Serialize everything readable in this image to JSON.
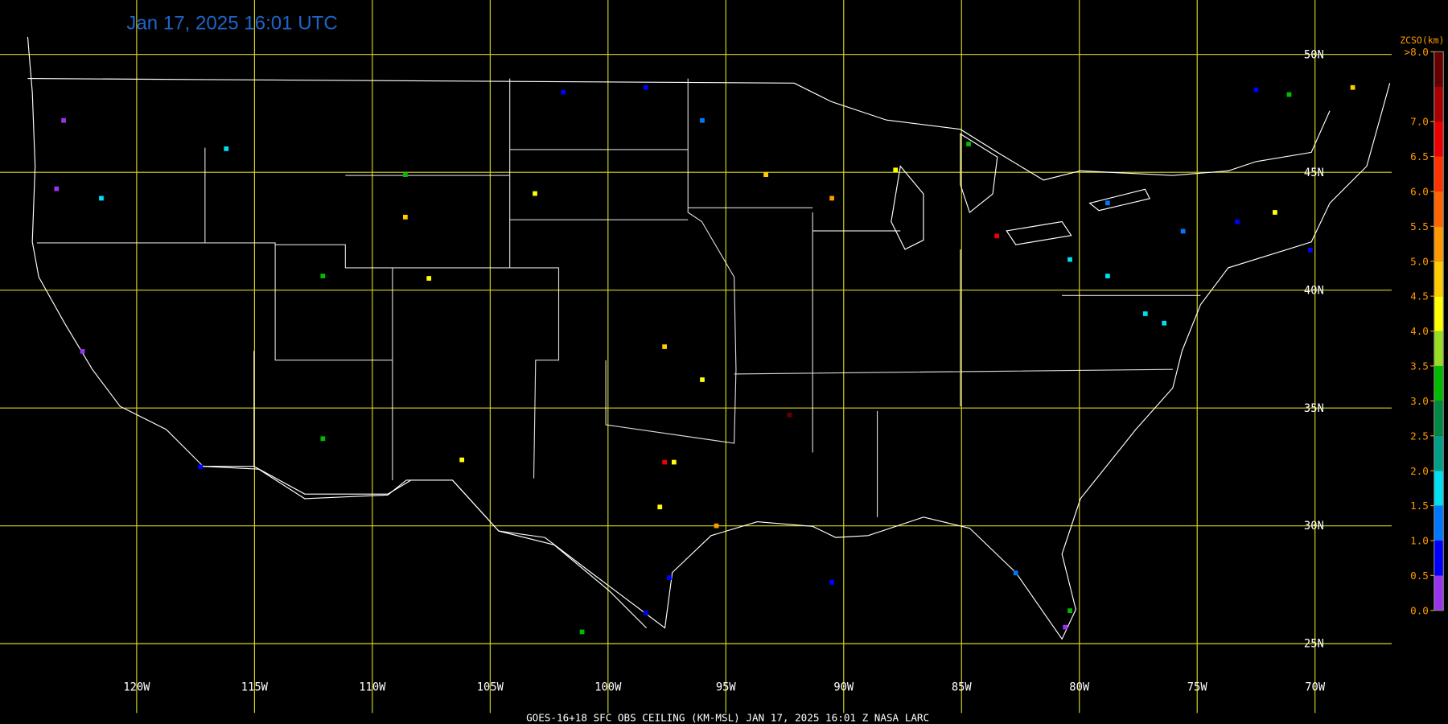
{
  "map": {
    "title": "Jan 17, 2025 16:01 UTC",
    "footer": "GOES-16+18  SFC OBS CEILING (KM-MSL)  JAN 17, 2025 16:01 Z  NASA LARC",
    "meridians": [
      {
        "value": -120,
        "label": "120W"
      },
      {
        "value": -115,
        "label": "115W"
      },
      {
        "value": -110,
        "label": "110W"
      },
      {
        "value": -105,
        "label": "105W"
      },
      {
        "value": -100,
        "label": "100W"
      },
      {
        "value": -95,
        "label": "95W"
      },
      {
        "value": -90,
        "label": "90W"
      },
      {
        "value": -85,
        "label": "85W"
      },
      {
        "value": -80,
        "label": "80W"
      },
      {
        "value": -75,
        "label": "75W"
      },
      {
        "value": -70,
        "label": "70W"
      }
    ],
    "parallels": [
      {
        "value": 50,
        "label": "50N"
      },
      {
        "value": 45,
        "label": "45N"
      },
      {
        "value": 40,
        "label": "40N"
      },
      {
        "value": 35,
        "label": "35N"
      },
      {
        "value": 30,
        "label": "30N"
      },
      {
        "value": 25,
        "label": "25N"
      }
    ],
    "colorbar": {
      "title": "ZCSO(km)",
      "range": [
        0,
        8
      ],
      "colors": [
        "#9933ee",
        "#0000ff",
        "#0077ff",
        "#00e0f0",
        "#00a088",
        "#008844",
        "#00bb00",
        "#99dd22",
        "#ffff00",
        "#ffcc00",
        "#ff9900",
        "#ff6600",
        "#ff3300",
        "#ee0000",
        "#aa0000",
        "#660000"
      ],
      "ticks": [
        {
          "value": 0,
          "label": "0.0"
        },
        {
          "value": 0.5,
          "label": "0.5"
        },
        {
          "value": 1,
          "label": "1.0"
        },
        {
          "value": 1.5,
          "label": "1.5"
        },
        {
          "value": 2,
          "label": "2.0"
        },
        {
          "value": 2.5,
          "label": "2.5"
        },
        {
          "value": 3,
          "label": "3.0"
        },
        {
          "value": 3.5,
          "label": "3.5"
        },
        {
          "value": 4,
          "label": "4.0"
        },
        {
          "value": 4.5,
          "label": "4.5"
        },
        {
          "value": 5,
          "label": "5.0"
        },
        {
          "value": 5.5,
          "label": "5.5"
        },
        {
          "value": 6,
          "label": "6.0"
        },
        {
          "value": 6.5,
          "label": "6.5"
        },
        {
          "value": 7,
          "label": "7.0"
        },
        {
          "value": 8,
          "label": ">8.0"
        }
      ]
    },
    "stations": [
      {
        "lon": -123.1,
        "lat": 47.2,
        "ceiling": 0.3
      },
      {
        "lon": -123.4,
        "lat": 44.3,
        "ceiling": 0.3
      },
      {
        "lon": -122.3,
        "lat": 37.4,
        "ceiling": 0.3
      },
      {
        "lon": -117.3,
        "lat": 32.5,
        "ceiling": 0.8
      },
      {
        "lon": -112.1,
        "lat": 40.6,
        "ceiling": 3.2
      },
      {
        "lon": -108.6,
        "lat": 44.9,
        "ceiling": 3.2
      },
      {
        "lon": -107.6,
        "lat": 40.5,
        "ceiling": 4.2
      },
      {
        "lon": -106.2,
        "lat": 32.8,
        "ceiling": 4.2
      },
      {
        "lon": -112.1,
        "lat": 33.7,
        "ceiling": 3.2
      },
      {
        "lon": -101.9,
        "lat": 48.4,
        "ceiling": 0.8
      },
      {
        "lon": -98.4,
        "lat": 48.6,
        "ceiling": 0.8
      },
      {
        "lon": -96.0,
        "lat": 47.2,
        "ceiling": 1.2
      },
      {
        "lon": -97.6,
        "lat": 37.6,
        "ceiling": 4.8
      },
      {
        "lon": -96.0,
        "lat": 36.2,
        "ceiling": 4.2
      },
      {
        "lon": -97.2,
        "lat": 32.7,
        "ceiling": 4.2
      },
      {
        "lon": -97.6,
        "lat": 32.7,
        "ceiling": 6.8
      },
      {
        "lon": -97.8,
        "lat": 30.8,
        "ceiling": 4.2
      },
      {
        "lon": -98.4,
        "lat": 26.3,
        "ceiling": 0.8
      },
      {
        "lon": -97.4,
        "lat": 27.8,
        "ceiling": 0.8
      },
      {
        "lon": -95.4,
        "lat": 30.0,
        "ceiling": 5.3
      },
      {
        "lon": -92.3,
        "lat": 34.7,
        "ceiling": 7.8
      },
      {
        "lon": -90.5,
        "lat": 43.9,
        "ceiling": 5.3
      },
      {
        "lon": -87.8,
        "lat": 45.1,
        "ceiling": 4.2
      },
      {
        "lon": -84.7,
        "lat": 46.2,
        "ceiling": 3.2
      },
      {
        "lon": -83.5,
        "lat": 42.3,
        "ceiling": 6.8
      },
      {
        "lon": -80.4,
        "lat": 41.3,
        "ceiling": 1.7
      },
      {
        "lon": -78.8,
        "lat": 40.6,
        "ceiling": 1.7
      },
      {
        "lon": -77.2,
        "lat": 39.0,
        "ceiling": 1.7
      },
      {
        "lon": -76.4,
        "lat": 38.6,
        "ceiling": 1.7
      },
      {
        "lon": -78.8,
        "lat": 43.7,
        "ceiling": 1.2
      },
      {
        "lon": -75.6,
        "lat": 42.5,
        "ceiling": 1.2
      },
      {
        "lon": -73.3,
        "lat": 42.9,
        "ceiling": 0.8
      },
      {
        "lon": -71.7,
        "lat": 43.3,
        "ceiling": 4.2
      },
      {
        "lon": -70.2,
        "lat": 41.7,
        "ceiling": 0.8
      },
      {
        "lon": -82.7,
        "lat": 28.0,
        "ceiling": 1.2
      },
      {
        "lon": -80.4,
        "lat": 26.4,
        "ceiling": 3.2
      },
      {
        "lon": -80.6,
        "lat": 25.7,
        "ceiling": 0.3
      },
      {
        "lon": -90.5,
        "lat": 27.6,
        "ceiling": 0.8
      },
      {
        "lon": -101.1,
        "lat": 25.5,
        "ceiling": 3.2
      },
      {
        "lon": -68.4,
        "lat": 48.6,
        "ceiling": 4.8
      },
      {
        "lon": -71.1,
        "lat": 48.3,
        "ceiling": 3.2
      },
      {
        "lon": -72.5,
        "lat": 48.5,
        "ceiling": 0.8
      },
      {
        "lon": -103.1,
        "lat": 44.1,
        "ceiling": 4.2
      },
      {
        "lon": -108.6,
        "lat": 43.1,
        "ceiling": 4.8
      },
      {
        "lon": -116.2,
        "lat": 46.0,
        "ceiling": 1.7
      },
      {
        "lon": -121.5,
        "lat": 43.9,
        "ceiling": 1.7
      },
      {
        "lon": -93.3,
        "lat": 44.9,
        "ceiling": 4.8
      }
    ]
  }
}
